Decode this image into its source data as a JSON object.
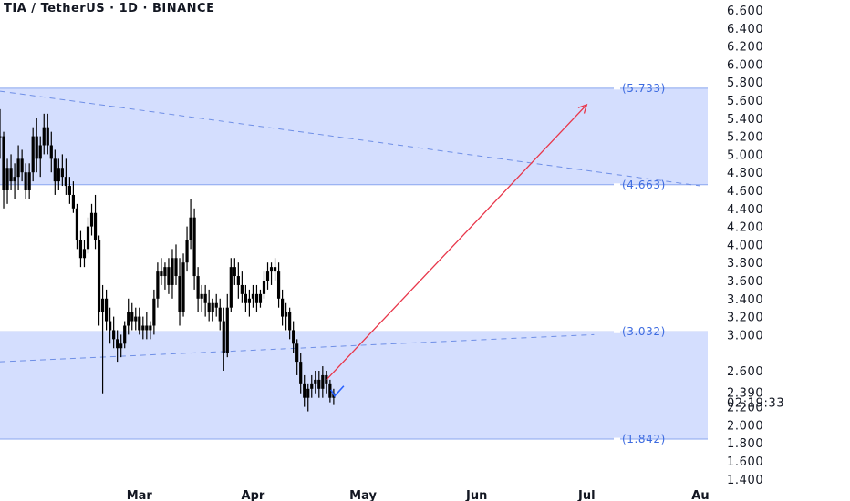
{
  "header": {
    "title": "TIA / TetherUS · 1D · BINANCE"
  },
  "price_axis": {
    "ticks": [
      "6.600",
      "6.400",
      "6.200",
      "6.000",
      "5.800",
      "5.600",
      "5.400",
      "5.200",
      "5.000",
      "4.800",
      "4.600",
      "4.400",
      "4.200",
      "4.000",
      "3.800",
      "3.600",
      "3.400",
      "3.200",
      "3.000",
      "2.600",
      "2.200",
      "2.000",
      "1.800",
      "1.600",
      "1.400"
    ],
    "last_price": "2.390",
    "countdown": "02:19:33"
  },
  "time_axis": {
    "labels": [
      "Mar",
      "Apr",
      "May",
      "Jun",
      "Jul",
      "Au"
    ]
  },
  "colors": {
    "zone_fill": "#d4defe",
    "zone_edge": "#8aa6ef",
    "level_text": "#3d6be0",
    "trend": "#6f8fe6",
    "arrow": "#e8364a",
    "candle": "#000000",
    "marker": "#2962ff"
  },
  "chart_data": {
    "type": "candlestick",
    "title": "TIA / TetherUS · 1D · BINANCE",
    "xlabel": "",
    "ylabel": "",
    "ylim": [
      1.3,
      6.7
    ],
    "x_range": [
      "2024-01-23",
      "2024-08-03"
    ],
    "y_ticks": [
      6.6,
      6.4,
      6.2,
      6.0,
      5.8,
      5.6,
      5.4,
      5.2,
      5.0,
      4.8,
      4.6,
      4.4,
      4.2,
      4.0,
      3.8,
      3.6,
      3.4,
      3.2,
      3.0,
      2.6,
      2.2,
      2.0,
      1.8,
      1.6,
      1.4
    ],
    "x_ticks": [
      {
        "label": "Mar",
        "date": "2024-03-01"
      },
      {
        "label": "Apr",
        "date": "2024-04-01"
      },
      {
        "label": "May",
        "date": "2024-05-01"
      },
      {
        "label": "Jun",
        "date": "2024-06-01"
      },
      {
        "label": "Jul",
        "date": "2024-07-01"
      },
      {
        "label": "Au",
        "date": "2024-08-01"
      }
    ],
    "zones": [
      {
        "top": 5.733,
        "bottom": 4.663,
        "top_label": "(5.733)",
        "bottom_label": "(4.663)"
      },
      {
        "top": 3.032,
        "bottom": 1.842,
        "top_label": "(3.032)",
        "bottom_label": "(1.842)"
      }
    ],
    "trendlines": [
      {
        "style": "dashed",
        "from": {
          "date": "2024-01-23",
          "price": 5.7
        },
        "to": {
          "date": "2024-08-01",
          "price": 4.65
        }
      },
      {
        "style": "dashed",
        "from": {
          "date": "2024-01-23",
          "price": 2.7
        },
        "to": {
          "date": "2024-07-03",
          "price": 3.0
        }
      }
    ],
    "projection_arrow": {
      "from": {
        "date": "2024-04-21",
        "price": 2.5
      },
      "to": {
        "date": "2024-07-01",
        "price": 5.55
      }
    },
    "candles": [
      [
        "2024-01-23",
        5.2,
        5.5,
        4.95,
        5.2
      ],
      [
        "2024-01-24",
        5.2,
        5.25,
        4.4,
        4.6
      ],
      [
        "2024-01-25",
        4.6,
        4.95,
        4.45,
        4.85
      ],
      [
        "2024-01-26",
        4.85,
        5.0,
        4.6,
        4.7
      ],
      [
        "2024-01-27",
        4.7,
        4.9,
        4.5,
        4.75
      ],
      [
        "2024-01-28",
        4.75,
        5.1,
        4.6,
        4.95
      ],
      [
        "2024-01-29",
        4.95,
        5.05,
        4.7,
        4.8
      ],
      [
        "2024-01-30",
        4.8,
        4.9,
        4.5,
        4.6
      ],
      [
        "2024-01-31",
        4.6,
        4.9,
        4.5,
        4.8
      ],
      [
        "2024-02-01",
        4.8,
        5.3,
        4.7,
        5.2
      ],
      [
        "2024-02-02",
        5.2,
        5.4,
        4.8,
        4.95
      ],
      [
        "2024-02-03",
        4.95,
        5.2,
        4.75,
        5.1
      ],
      [
        "2024-02-04",
        5.1,
        5.45,
        5.0,
        5.3
      ],
      [
        "2024-02-05",
        5.3,
        5.45,
        5.0,
        5.1
      ],
      [
        "2024-02-06",
        5.1,
        5.25,
        4.8,
        4.95
      ],
      [
        "2024-02-07",
        4.95,
        5.05,
        4.55,
        4.7
      ],
      [
        "2024-02-08",
        4.7,
        4.95,
        4.6,
        4.85
      ],
      [
        "2024-02-09",
        4.85,
        5.0,
        4.65,
        4.75
      ],
      [
        "2024-02-10",
        4.75,
        4.95,
        4.55,
        4.65
      ],
      [
        "2024-02-11",
        4.65,
        4.75,
        4.45,
        4.55
      ],
      [
        "2024-02-12",
        4.55,
        4.7,
        4.35,
        4.4
      ],
      [
        "2024-02-13",
        4.4,
        4.45,
        3.95,
        4.05
      ],
      [
        "2024-02-14",
        4.05,
        4.15,
        3.75,
        3.85
      ],
      [
        "2024-02-15",
        3.85,
        4.05,
        3.75,
        3.95
      ],
      [
        "2024-02-16",
        3.95,
        4.3,
        3.9,
        4.2
      ],
      [
        "2024-02-17",
        4.2,
        4.45,
        4.1,
        4.35
      ],
      [
        "2024-02-18",
        4.35,
        4.55,
        3.95,
        4.05
      ],
      [
        "2024-02-19",
        4.05,
        4.1,
        3.1,
        3.25
      ],
      [
        "2024-02-20",
        3.25,
        3.55,
        2.35,
        3.4
      ],
      [
        "2024-02-21",
        3.4,
        3.5,
        3.05,
        3.15
      ],
      [
        "2024-02-22",
        3.15,
        3.3,
        2.9,
        3.05
      ],
      [
        "2024-02-23",
        3.05,
        3.2,
        2.85,
        2.95
      ],
      [
        "2024-02-24",
        2.95,
        3.05,
        2.7,
        2.85
      ],
      [
        "2024-02-25",
        2.85,
        3.0,
        2.75,
        2.9
      ],
      [
        "2024-02-26",
        2.9,
        3.15,
        2.85,
        3.1
      ],
      [
        "2024-02-27",
        3.1,
        3.4,
        3.0,
        3.25
      ],
      [
        "2024-02-28",
        3.25,
        3.35,
        3.05,
        3.15
      ],
      [
        "2024-02-29",
        3.15,
        3.3,
        3.05,
        3.2
      ],
      [
        "2024-03-01",
        3.2,
        3.3,
        3.0,
        3.05
      ],
      [
        "2024-03-02",
        3.05,
        3.2,
        2.95,
        3.1
      ],
      [
        "2024-03-03",
        3.1,
        3.25,
        2.95,
        3.05
      ],
      [
        "2024-03-04",
        3.05,
        3.15,
        2.95,
        3.1
      ],
      [
        "2024-03-05",
        3.1,
        3.5,
        3.0,
        3.4
      ],
      [
        "2024-03-06",
        3.4,
        3.8,
        3.3,
        3.7
      ],
      [
        "2024-03-07",
        3.7,
        3.85,
        3.55,
        3.65
      ],
      [
        "2024-03-08",
        3.65,
        3.8,
        3.5,
        3.75
      ],
      [
        "2024-03-09",
        3.75,
        3.85,
        3.45,
        3.55
      ],
      [
        "2024-03-10",
        3.55,
        3.95,
        3.4,
        3.85
      ],
      [
        "2024-03-11",
        3.85,
        4.0,
        3.55,
        3.65
      ],
      [
        "2024-03-12",
        3.65,
        3.85,
        3.1,
        3.25
      ],
      [
        "2024-03-13",
        3.25,
        3.9,
        3.2,
        3.8
      ],
      [
        "2024-03-14",
        3.8,
        4.2,
        3.7,
        4.05
      ],
      [
        "2024-03-15",
        4.05,
        4.5,
        3.95,
        4.3
      ],
      [
        "2024-03-16",
        4.3,
        4.4,
        3.5,
        3.65
      ],
      [
        "2024-03-17",
        3.65,
        3.75,
        3.25,
        3.4
      ],
      [
        "2024-03-18",
        3.4,
        3.55,
        3.25,
        3.45
      ],
      [
        "2024-03-19",
        3.45,
        3.55,
        3.2,
        3.35
      ],
      [
        "2024-03-20",
        3.35,
        3.5,
        3.15,
        3.25
      ],
      [
        "2024-03-21",
        3.25,
        3.4,
        3.15,
        3.35
      ],
      [
        "2024-03-22",
        3.35,
        3.45,
        3.2,
        3.3
      ],
      [
        "2024-03-23",
        3.3,
        3.4,
        3.05,
        3.15
      ],
      [
        "2024-03-24",
        3.15,
        3.3,
        2.6,
        2.8
      ],
      [
        "2024-03-25",
        2.8,
        3.45,
        2.75,
        3.3
      ],
      [
        "2024-03-26",
        3.3,
        3.85,
        3.25,
        3.75
      ],
      [
        "2024-03-27",
        3.75,
        3.85,
        3.55,
        3.65
      ],
      [
        "2024-03-28",
        3.65,
        3.8,
        3.4,
        3.55
      ],
      [
        "2024-03-29",
        3.55,
        3.7,
        3.35,
        3.45
      ],
      [
        "2024-03-30",
        3.45,
        3.55,
        3.25,
        3.35
      ],
      [
        "2024-03-31",
        3.35,
        3.5,
        3.2,
        3.4
      ],
      [
        "2024-04-01",
        3.4,
        3.55,
        3.3,
        3.45
      ],
      [
        "2024-04-02",
        3.45,
        3.55,
        3.25,
        3.35
      ],
      [
        "2024-04-03",
        3.35,
        3.5,
        3.3,
        3.45
      ],
      [
        "2024-04-04",
        3.45,
        3.7,
        3.4,
        3.6
      ],
      [
        "2024-04-05",
        3.6,
        3.8,
        3.5,
        3.7
      ],
      [
        "2024-04-06",
        3.7,
        3.8,
        3.55,
        3.75
      ],
      [
        "2024-04-07",
        3.75,
        3.85,
        3.6,
        3.7
      ],
      [
        "2024-04-08",
        3.7,
        3.8,
        3.3,
        3.4
      ],
      [
        "2024-04-09",
        3.4,
        3.5,
        3.1,
        3.2
      ],
      [
        "2024-04-10",
        3.2,
        3.35,
        3.05,
        3.25
      ],
      [
        "2024-04-11",
        3.25,
        3.3,
        2.95,
        3.05
      ],
      [
        "2024-04-12",
        3.05,
        3.15,
        2.8,
        2.9
      ],
      [
        "2024-04-13",
        2.9,
        2.95,
        2.55,
        2.7
      ],
      [
        "2024-04-14",
        2.7,
        2.8,
        2.35,
        2.45
      ],
      [
        "2024-04-15",
        2.45,
        2.55,
        2.2,
        2.3
      ],
      [
        "2024-04-16",
        2.3,
        2.45,
        2.15,
        2.4
      ],
      [
        "2024-04-17",
        2.4,
        2.55,
        2.3,
        2.45
      ],
      [
        "2024-04-18",
        2.45,
        2.6,
        2.35,
        2.5
      ],
      [
        "2024-04-19",
        2.5,
        2.6,
        2.3,
        2.4
      ],
      [
        "2024-04-20",
        2.4,
        2.65,
        2.3,
        2.55
      ],
      [
        "2024-04-21",
        2.55,
        2.6,
        2.35,
        2.45
      ],
      [
        "2024-04-22",
        2.45,
        2.5,
        2.25,
        2.3
      ],
      [
        "2024-04-23",
        2.3,
        2.4,
        2.22,
        2.35
      ]
    ]
  }
}
